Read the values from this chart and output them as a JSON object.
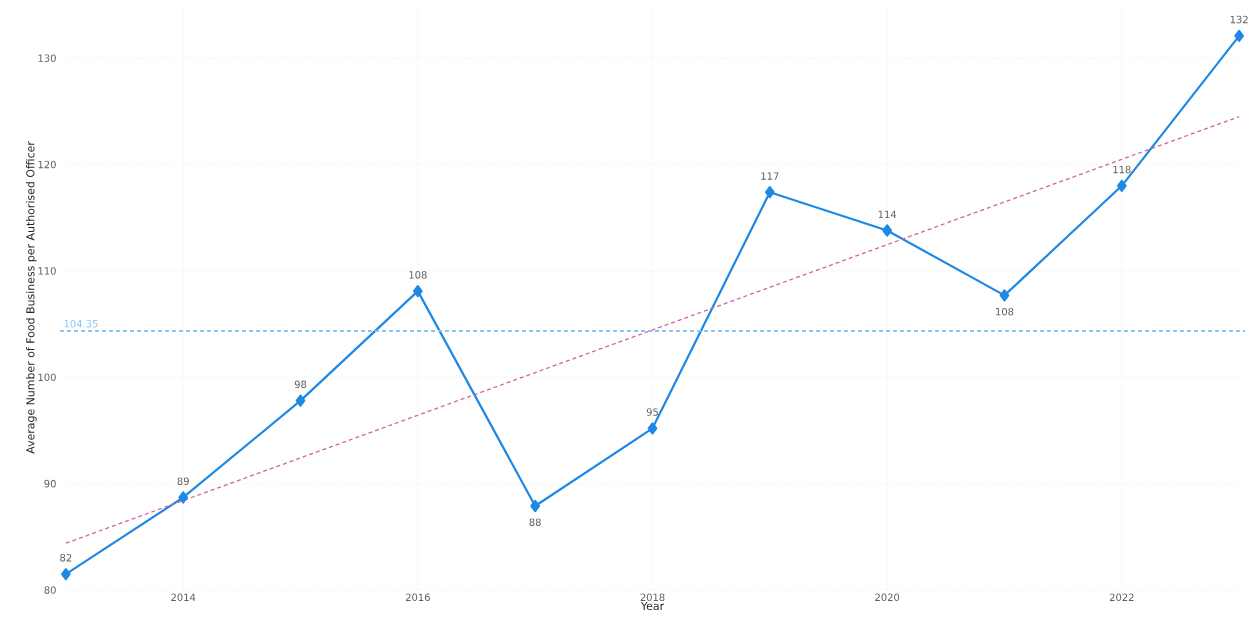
{
  "chart_data": {
    "type": "line",
    "xlabel": "Year",
    "ylabel": "Average Number of Food Business per Authorised Officer",
    "x": [
      2013,
      2014,
      2015,
      2016,
      2017,
      2018,
      2019,
      2020,
      2021,
      2022,
      2023
    ],
    "series": [
      {
        "color": "#1e88e5",
        "marker": "diamond",
        "line_style": "solid",
        "values": [
          81.5,
          88.7,
          97.8,
          108.1,
          87.9,
          95.2,
          117.4,
          113.8,
          107.7,
          118.0,
          132.1
        ],
        "value_labels": [
          "82",
          "89",
          "98",
          "108",
          "88",
          "95",
          "117",
          "114",
          "108",
          "118",
          "132"
        ]
      },
      {
        "type": "line",
        "color": "#d062a8",
        "marker": "none",
        "line_style": "dashed",
        "x": [
          2013,
          2023
        ],
        "values": [
          84.4,
          124.5
        ]
      }
    ],
    "ref_lines": [
      {
        "axis": "y",
        "value": 104.35,
        "label": "104.35",
        "color": "#8cc4f0",
        "line_style": "dashed"
      }
    ],
    "xlim": [
      2012.95,
      2023.05
    ],
    "ylim": [
      80,
      135
    ],
    "xticks": [
      2014,
      2016,
      2018,
      2020,
      2022
    ],
    "yticks": [
      80,
      90,
      100,
      110,
      120,
      130
    ],
    "grid": true
  }
}
